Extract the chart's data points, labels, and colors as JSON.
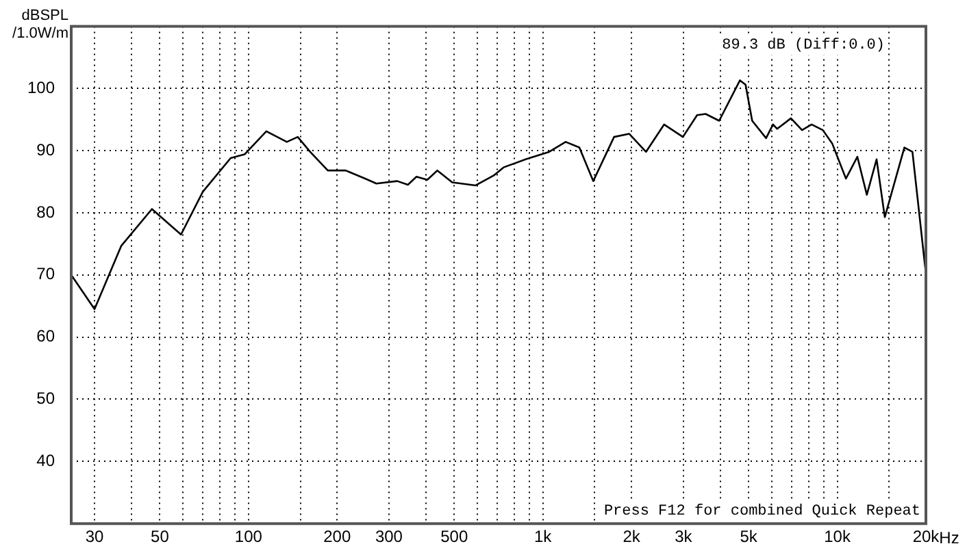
{
  "chart_data": {
    "type": "line",
    "ylabel": "dBSPL /1.0W/m",
    "annotations": [
      "89.3 dB (Diff:0.0)",
      "Press F12 for combined Quick Repeat"
    ],
    "xlim": [
      25,
      20000
    ],
    "ylim": [
      30,
      110
    ],
    "xticks": [
      {
        "value": 30,
        "label": "30"
      },
      {
        "value": 40,
        "label": null
      },
      {
        "value": 50,
        "label": "50"
      },
      {
        "value": 60,
        "label": null
      },
      {
        "value": 70,
        "label": null
      },
      {
        "value": 80,
        "label": null
      },
      {
        "value": 90,
        "label": null
      },
      {
        "value": 100,
        "label": "100"
      },
      {
        "value": 150,
        "label": null
      },
      {
        "value": 200,
        "label": "200"
      },
      {
        "value": 300,
        "label": "300"
      },
      {
        "value": 400,
        "label": null
      },
      {
        "value": 500,
        "label": "500"
      },
      {
        "value": 600,
        "label": null
      },
      {
        "value": 700,
        "label": null
      },
      {
        "value": 800,
        "label": null
      },
      {
        "value": 900,
        "label": null
      },
      {
        "value": 1000,
        "label": "1k"
      },
      {
        "value": 1500,
        "label": null
      },
      {
        "value": 2000,
        "label": "2k"
      },
      {
        "value": 3000,
        "label": "3k"
      },
      {
        "value": 4000,
        "label": null
      },
      {
        "value": 5000,
        "label": "5k"
      },
      {
        "value": 6000,
        "label": null
      },
      {
        "value": 7000,
        "label": null
      },
      {
        "value": 8000,
        "label": null
      },
      {
        "value": 9000,
        "label": null
      },
      {
        "value": 10000,
        "label": "10k"
      },
      {
        "value": 15000,
        "label": null
      },
      {
        "value": 20000,
        "label": "20k"
      }
    ],
    "xlabel": "Hz",
    "yticks": [
      40,
      50,
      60,
      70,
      80,
      90,
      100
    ],
    "log": "x",
    "grid": true,
    "legend": false,
    "marker": "none",
    "line_style": "solid",
    "series": [
      {
        "color": "#000000",
        "x": [
          25,
          30,
          37,
          47,
          59,
          70,
          87,
          97,
          115,
          135,
          147,
          162,
          186,
          214,
          249,
          272,
          320,
          348,
          372,
          405,
          438,
          492,
          591,
          681,
          735,
          874,
          1050,
          1195,
          1330,
          1483,
          1745,
          1965,
          2240,
          2580,
          2990,
          3340,
          3570,
          3970,
          4670,
          4880,
          5140,
          5730,
          6050,
          6250,
          6960,
          7590,
          8180,
          8930,
          9620,
          10700,
          11700,
          12600,
          13600,
          14500,
          16900,
          18000,
          19900
        ],
        "values": [
          70,
          64.5,
          74.7,
          80.6,
          76.5,
          83.4,
          88.8,
          89.4,
          93.1,
          91.4,
          92.2,
          89.8,
          86.8,
          86.8,
          85.5,
          84.7,
          85.1,
          84.5,
          85.8,
          85.3,
          86.8,
          84.9,
          84.4,
          86,
          87.3,
          88.6,
          89.8,
          91.4,
          90.5,
          85.1,
          92.2,
          92.7,
          89.8,
          94.2,
          92.2,
          95.7,
          95.9,
          94.8,
          101.3,
          100.6,
          94.8,
          92,
          94.2,
          93.5,
          95.2,
          93.3,
          94.2,
          93.3,
          91.1,
          85.5,
          89,
          82.9,
          88.6,
          79.3,
          90.5,
          89.8,
          71.1
        ]
      }
    ]
  }
}
